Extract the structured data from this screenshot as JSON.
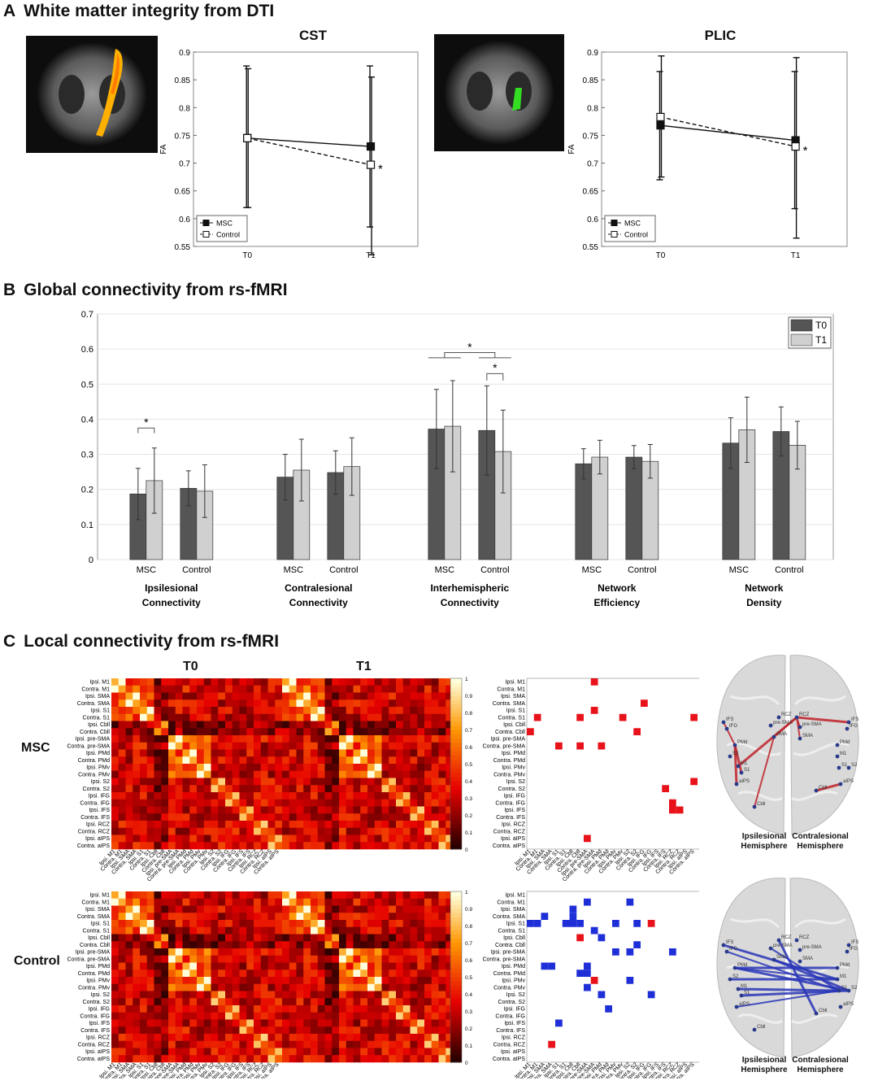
{
  "panelA": {
    "letter": "A",
    "title": "White matter integrity from DTI",
    "ylabel": "FA",
    "legend": [
      "MSC",
      "Control"
    ]
  },
  "panelB": {
    "letter": "B",
    "title": "Global connectivity from rs-fMRI",
    "legend": [
      "T0",
      "T1"
    ]
  },
  "panelC": {
    "letter": "C",
    "title": "Local connectivity from rs-fMRI",
    "col_labels": [
      "T0",
      "T1"
    ],
    "row_labels": [
      "MSC",
      "Control"
    ],
    "hemisphere_labels": [
      "Ipsilesional Hemisphere",
      "Contralesional Hemisphere"
    ],
    "regions": [
      "Ipsi. M1",
      "Contra. M1",
      "Ipsi. SMA",
      "Contra. SMA",
      "Ipsi. S1",
      "Contra. S1",
      "Ipsi. Cbll",
      "Contra. Cbll",
      "Ipsi. pre-SMA",
      "Contra. pre-SMA",
      "Ipsi. PMd",
      "Contra. PMd",
      "Ipsi. PMv",
      "Contra. PMv",
      "Ipsi. S2",
      "Contra. S2",
      "Ipsi. IFG",
      "Contra. IFG",
      "Ipsi. IFS",
      "Contra. IFS",
      "Ipsi. RCZ",
      "Contra. RCZ",
      "Ipsi. aIPS",
      "Contra. aIPS"
    ],
    "colorbar_ticks": [
      "0",
      "0.1",
      "0.2",
      "0.3",
      "0.4",
      "0.5",
      "0.6",
      "0.7",
      "0.8",
      "0.9",
      "1"
    ],
    "brain_nodes_left": [
      "IFS",
      "IFG",
      "PMd",
      "S2",
      "M1",
      "S1",
      "aIPS",
      "Cbll",
      "pre-SMA",
      "SMA",
      "RCZ"
    ],
    "brain_nodes_right": [
      "RCZ",
      "pre-SMA",
      "SMA",
      "IFS",
      "IFG",
      "PMd",
      "M1",
      "S1",
      "S2",
      "aIPS",
      "Cbll"
    ],
    "msc_sig_cells": [
      [
        0,
        9
      ],
      [
        3,
        16
      ],
      [
        4,
        9
      ],
      [
        5,
        23
      ],
      [
        5,
        1
      ],
      [
        5,
        7
      ],
      [
        5,
        13
      ],
      [
        7,
        15
      ],
      [
        7,
        0
      ],
      [
        9,
        10
      ],
      [
        9,
        4
      ],
      [
        9,
        7
      ],
      [
        14,
        23
      ],
      [
        15,
        19
      ],
      [
        17,
        20
      ],
      [
        18,
        20
      ],
      [
        18,
        21
      ],
      [
        22,
        8
      ]
    ],
    "control_pos_cells": [
      [
        6,
        7
      ],
      [
        12,
        9
      ],
      [
        4,
        17
      ],
      [
        21,
        3
      ]
    ],
    "control_neg_cells": [
      [
        1,
        8
      ],
      [
        1,
        14
      ],
      [
        3,
        2
      ],
      [
        3,
        6
      ],
      [
        4,
        0
      ],
      [
        4,
        1
      ],
      [
        4,
        5
      ],
      [
        4,
        6
      ],
      [
        4,
        7
      ],
      [
        4,
        12
      ],
      [
        4,
        15
      ],
      [
        5,
        9
      ],
      [
        6,
        10
      ],
      [
        7,
        15
      ],
      [
        8,
        12
      ],
      [
        8,
        14
      ],
      [
        8,
        20
      ],
      [
        10,
        2
      ],
      [
        10,
        8
      ],
      [
        11,
        8
      ],
      [
        11,
        7
      ],
      [
        12,
        14
      ],
      [
        13,
        8
      ],
      [
        14,
        10
      ],
      [
        16,
        11
      ],
      [
        18,
        4
      ],
      [
        10,
        3
      ],
      [
        2,
        6
      ],
      [
        14,
        17
      ]
    ]
  },
  "chart_data": [
    {
      "type": "line",
      "title": "CST",
      "x": [
        "T0",
        "T1"
      ],
      "ylabel": "FA",
      "ylim": [
        0.55,
        0.9
      ],
      "yticks": [
        0.55,
        0.6,
        0.65,
        0.7,
        0.75,
        0.8,
        0.85,
        0.9
      ],
      "series": [
        {
          "name": "MSC",
          "values": [
            0.745,
            0.73
          ],
          "err_low": [
            0.62,
            0.585
          ],
          "err_high": [
            0.875,
            0.875
          ],
          "style": "solid",
          "marker": "filled-square"
        },
        {
          "name": "Control",
          "values": [
            0.745,
            0.697
          ],
          "err_low": [
            0.62,
            0.535
          ],
          "err_high": [
            0.87,
            0.855
          ],
          "style": "dashed",
          "marker": "open-square"
        }
      ],
      "annotations": [
        "*"
      ],
      "legend_position": "bottom-left"
    },
    {
      "type": "line",
      "title": "PLIC",
      "x": [
        "T0",
        "T1"
      ],
      "ylabel": "FA",
      "ylim": [
        0.55,
        0.9
      ],
      "yticks": [
        0.55,
        0.6,
        0.65,
        0.7,
        0.75,
        0.8,
        0.85,
        0.9
      ],
      "series": [
        {
          "name": "MSC",
          "values": [
            0.768,
            0.741
          ],
          "err_low": [
            0.67,
            0.618
          ],
          "err_high": [
            0.865,
            0.865
          ],
          "style": "solid",
          "marker": "filled-square"
        },
        {
          "name": "Control",
          "values": [
            0.783,
            0.73
          ],
          "err_low": [
            0.675,
            0.565
          ],
          "err_high": [
            0.893,
            0.89
          ],
          "style": "dashed",
          "marker": "open-square"
        }
      ],
      "annotations": [
        "*"
      ],
      "legend_position": "bottom-left"
    },
    {
      "type": "bar",
      "title": "",
      "ylim": [
        0,
        0.7
      ],
      "yticks": [
        0,
        0.1,
        0.2,
        0.3,
        0.4,
        0.5,
        0.6,
        0.7
      ],
      "groups": [
        {
          "label": "Ipsilesional Connectivity",
          "lines": [
            "Ipsilesional",
            "Connectivity"
          ],
          "categories": [
            "MSC",
            "Control"
          ],
          "T0": [
            0.187,
            0.203
          ],
          "T1": [
            0.225,
            0.195
          ],
          "T0_err": [
            0.073,
            0.05
          ],
          "T1_err": [
            0.093,
            0.075
          ]
        },
        {
          "label": "Contralesional Connectivity",
          "lines": [
            "Contralesional",
            "Connectivity"
          ],
          "categories": [
            "MSC",
            "Control"
          ],
          "T0": [
            0.235,
            0.248
          ],
          "T1": [
            0.255,
            0.265
          ],
          "T0_err": [
            0.065,
            0.062
          ],
          "T1_err": [
            0.088,
            0.082
          ]
        },
        {
          "label": "Interhemispheric Connectivity",
          "lines": [
            "Interhemispheric",
            "Connectivity"
          ],
          "categories": [
            "MSC",
            "Control"
          ],
          "T0": [
            0.372,
            0.368
          ],
          "T1": [
            0.38,
            0.308
          ],
          "T0_err": [
            0.113,
            0.127
          ],
          "T1_err": [
            0.13,
            0.118
          ]
        },
        {
          "label": "Network Efficiency",
          "lines": [
            "Network",
            "Efficiency"
          ],
          "categories": [
            "MSC",
            "Control"
          ],
          "T0": [
            0.273,
            0.292
          ],
          "T1": [
            0.292,
            0.28
          ],
          "T0_err": [
            0.043,
            0.033
          ],
          "T1_err": [
            0.048,
            0.048
          ]
        },
        {
          "label": "Network Density",
          "lines": [
            "Network",
            "Density"
          ],
          "categories": [
            "MSC",
            "Control"
          ],
          "T0": [
            0.332,
            0.365
          ],
          "T1": [
            0.37,
            0.326
          ],
          "T0_err": [
            0.072,
            0.07
          ],
          "T1_err": [
            0.093,
            0.068
          ]
        }
      ],
      "series": [
        {
          "name": "T0",
          "color": "#555555"
        },
        {
          "name": "T1",
          "color": "#d0d0d0"
        }
      ],
      "legend_position": "top-right",
      "grid": true,
      "annotations": [
        "*",
        "*",
        "*"
      ]
    }
  ]
}
